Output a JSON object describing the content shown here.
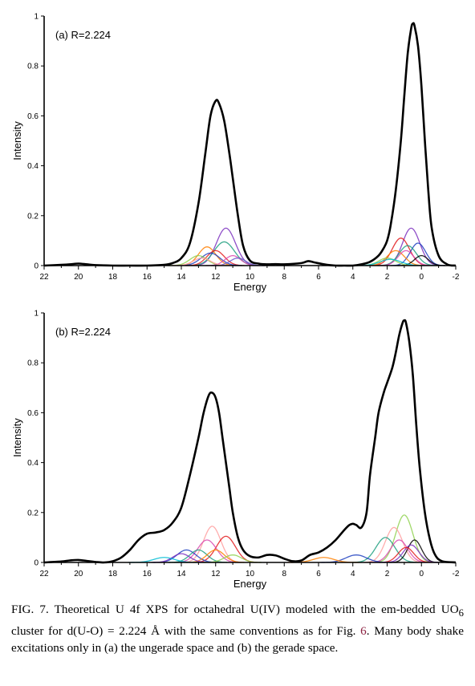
{
  "chart_data": [
    {
      "type": "line",
      "panel_label": "(a) R=2.224",
      "xlabel": "Energy",
      "ylabel": "Intensity",
      "xlim": [
        22,
        -2
      ],
      "ylim": [
        0,
        1
      ],
      "x_ticks": [
        "22",
        "20",
        "18",
        "16",
        "14",
        "12",
        "10",
        "8",
        "6",
        "4",
        "2",
        "0",
        "-2"
      ],
      "y_ticks": [
        "0",
        "0.2",
        "0.4",
        "0.6",
        "0.8",
        "1"
      ],
      "grid": false,
      "legend": "none",
      "series": [
        {
          "role": "total",
          "color": "#000000",
          "x": [
            22,
            21,
            20.5,
            20,
            19.5,
            19,
            18,
            17,
            16,
            15,
            14.5,
            14,
            13.5,
            13,
            12.6,
            12.3,
            12.0,
            11.8,
            11.5,
            11.2,
            11,
            10.7,
            10.4,
            10,
            9.5,
            9,
            8.5,
            8,
            7,
            6.6,
            6.2,
            5.5,
            5,
            4.5,
            4,
            3.5,
            3,
            2.5,
            2.2,
            2,
            1.8,
            1.5,
            1.2,
            1,
            0.8,
            0.6,
            0.5,
            0.4,
            0.2,
            0,
            -0.2,
            -0.4,
            -0.6,
            -1,
            -1.5,
            -2
          ],
          "y": [
            0,
            0.003,
            0.005,
            0.008,
            0.005,
            0.002,
            0,
            0,
            0,
            0.003,
            0.01,
            0.03,
            0.09,
            0.25,
            0.45,
            0.6,
            0.66,
            0.65,
            0.58,
            0.45,
            0.35,
            0.2,
            0.08,
            0.02,
            0.008,
            0.005,
            0.006,
            0.005,
            0.01,
            0.018,
            0.012,
            0.003,
            0,
            0,
            0,
            0.005,
            0.015,
            0.04,
            0.07,
            0.1,
            0.16,
            0.3,
            0.5,
            0.68,
            0.85,
            0.95,
            0.97,
            0.96,
            0.88,
            0.72,
            0.5,
            0.3,
            0.15,
            0.04,
            0.005,
            0
          ]
        },
        {
          "role": "component",
          "color": "#7b2fbe",
          "peak_x": 11.4,
          "peak_y": 0.15,
          "width": 0.55
        },
        {
          "role": "component",
          "color": "#20a080",
          "peak_x": 11.5,
          "peak_y": 0.095,
          "width": 0.6
        },
        {
          "role": "component",
          "color": "#ff7f00",
          "peak_x": 12.5,
          "peak_y": 0.075,
          "width": 0.5
        },
        {
          "role": "component",
          "color": "#e31a1c",
          "peak_x": 12.0,
          "peak_y": 0.06,
          "width": 0.5
        },
        {
          "role": "component",
          "color": "#1f3fbf",
          "peak_x": 12.3,
          "peak_y": 0.05,
          "width": 0.55
        },
        {
          "role": "component",
          "color": "#8fd14f",
          "peak_x": 13.0,
          "peak_y": 0.04,
          "width": 0.5
        },
        {
          "role": "component",
          "color": "#d94ab0",
          "peak_x": 11.0,
          "peak_y": 0.04,
          "width": 0.45
        },
        {
          "role": "component",
          "color": "#6a5acd",
          "peak_x": 10.7,
          "peak_y": 0.03,
          "width": 0.45
        },
        {
          "role": "component",
          "color": "#ff9f9f",
          "peak_x": 12.8,
          "peak_y": 0.03,
          "width": 0.5
        },
        {
          "role": "component",
          "color": "#7b2fbe",
          "peak_x": 0.6,
          "peak_y": 0.15,
          "width": 0.5
        },
        {
          "role": "component",
          "color": "#e31a1c",
          "peak_x": 1.2,
          "peak_y": 0.11,
          "width": 0.5
        },
        {
          "role": "component",
          "color": "#1f3fbf",
          "peak_x": 0.2,
          "peak_y": 0.09,
          "width": 0.45
        },
        {
          "role": "component",
          "color": "#20a080",
          "peak_x": 0.8,
          "peak_y": 0.08,
          "width": 0.5
        },
        {
          "role": "component",
          "color": "#ff7f00",
          "peak_x": 1.5,
          "peak_y": 0.06,
          "width": 0.5
        },
        {
          "role": "component",
          "color": "#d94ab0",
          "peak_x": 0.9,
          "peak_y": 0.06,
          "width": 0.45
        },
        {
          "role": "component",
          "color": "#000000",
          "peak_x": 0.0,
          "peak_y": 0.04,
          "width": 0.4
        },
        {
          "role": "component",
          "color": "#8fd14f",
          "peak_x": 2.0,
          "peak_y": 0.03,
          "width": 0.5
        },
        {
          "role": "component",
          "color": "#00bcd4",
          "peak_x": 1.8,
          "peak_y": 0.025,
          "width": 0.6
        }
      ]
    },
    {
      "type": "line",
      "panel_label": "(b) R=2.224",
      "xlabel": "Energy",
      "ylabel": "Intensity",
      "xlim": [
        22,
        -2
      ],
      "ylim": [
        0,
        1
      ],
      "x_ticks": [
        "22",
        "20",
        "18",
        "16",
        "14",
        "12",
        "10",
        "8",
        "6",
        "4",
        "2",
        "0",
        "-2"
      ],
      "y_ticks": [
        "0",
        "0.2",
        "0.4",
        "0.6",
        "0.8",
        "1"
      ],
      "grid": false,
      "legend": "none",
      "series": [
        {
          "role": "total",
          "color": "#000000",
          "x": [
            22,
            21,
            20.5,
            20,
            19.5,
            19,
            18.5,
            18,
            17.5,
            17,
            16.5,
            16,
            15.5,
            15,
            14.5,
            14,
            13.5,
            13,
            12.7,
            12.4,
            12.2,
            12.0,
            11.8,
            11.6,
            11.4,
            11.2,
            11,
            10.7,
            10.4,
            10,
            9.5,
            9,
            8.5,
            8,
            7.5,
            7,
            6.5,
            6,
            5.5,
            5,
            4.5,
            4.2,
            4,
            3.8,
            3.5,
            3.2,
            3,
            2.7,
            2.5,
            2.2,
            2,
            1.7,
            1.5,
            1.3,
            1.1,
            1.0,
            0.9,
            0.7,
            0.5,
            0.3,
            0.1,
            -0.2,
            -0.5,
            -0.8,
            -1.2,
            -2
          ],
          "y": [
            0,
            0.004,
            0.008,
            0.01,
            0.006,
            0.002,
            0,
            0.005,
            0.02,
            0.05,
            0.09,
            0.115,
            0.12,
            0.13,
            0.16,
            0.22,
            0.35,
            0.5,
            0.6,
            0.67,
            0.68,
            0.66,
            0.6,
            0.5,
            0.4,
            0.3,
            0.2,
            0.1,
            0.05,
            0.025,
            0.02,
            0.03,
            0.028,
            0.015,
            0.005,
            0.008,
            0.03,
            0.04,
            0.06,
            0.09,
            0.13,
            0.15,
            0.155,
            0.15,
            0.14,
            0.2,
            0.35,
            0.5,
            0.6,
            0.68,
            0.72,
            0.78,
            0.84,
            0.91,
            0.96,
            0.97,
            0.96,
            0.88,
            0.75,
            0.55,
            0.38,
            0.2,
            0.09,
            0.03,
            0.005,
            0
          ]
        },
        {
          "role": "component",
          "color": "#ff9f9f",
          "peak_x": 12.2,
          "peak_y": 0.145,
          "width": 0.5
        },
        {
          "role": "component",
          "color": "#e31a1c",
          "peak_x": 11.4,
          "peak_y": 0.105,
          "width": 0.55
        },
        {
          "role": "component",
          "color": "#d94ab0",
          "peak_x": 12.5,
          "peak_y": 0.09,
          "width": 0.55
        },
        {
          "role": "component",
          "color": "#1f3fbf",
          "peak_x": 13.7,
          "peak_y": 0.05,
          "width": 0.55
        },
        {
          "role": "component",
          "color": "#20a080",
          "peak_x": 13.0,
          "peak_y": 0.05,
          "width": 0.5
        },
        {
          "role": "component",
          "color": "#ff7f00",
          "peak_x": 12.0,
          "peak_y": 0.05,
          "width": 0.5
        },
        {
          "role": "component",
          "color": "#7b2fbe",
          "peak_x": 14.0,
          "peak_y": 0.035,
          "width": 0.5
        },
        {
          "role": "component",
          "color": "#00bcd4",
          "peak_x": 15.0,
          "peak_y": 0.02,
          "width": 0.6
        },
        {
          "role": "component",
          "color": "#8fd14f",
          "peak_x": 11.0,
          "peak_y": 0.03,
          "width": 0.5
        },
        {
          "role": "component",
          "color": "#8fd14f",
          "peak_x": 1.0,
          "peak_y": 0.19,
          "width": 0.5
        },
        {
          "role": "component",
          "color": "#ff9f9f",
          "peak_x": 1.6,
          "peak_y": 0.14,
          "width": 0.5
        },
        {
          "role": "component",
          "color": "#20a080",
          "peak_x": 2.1,
          "peak_y": 0.1,
          "width": 0.55
        },
        {
          "role": "component",
          "color": "#000000",
          "peak_x": 0.4,
          "peak_y": 0.09,
          "width": 0.4
        },
        {
          "role": "component",
          "color": "#d94ab0",
          "peak_x": 1.3,
          "peak_y": 0.09,
          "width": 0.5
        },
        {
          "role": "component",
          "color": "#7b2fbe",
          "peak_x": 0.6,
          "peak_y": 0.07,
          "width": 0.45
        },
        {
          "role": "component",
          "color": "#e31a1c",
          "peak_x": 0.9,
          "peak_y": 0.06,
          "width": 0.45
        },
        {
          "role": "component",
          "color": "#1f3fbf",
          "peak_x": 3.8,
          "peak_y": 0.03,
          "width": 0.6
        },
        {
          "role": "component",
          "color": "#ff7f00",
          "peak_x": 5.7,
          "peak_y": 0.02,
          "width": 0.6
        }
      ]
    }
  ],
  "caption": {
    "text_1": "FIG. 7.  Theoretical U 4f XPS for octahedral U(IV) modeled with the em-bedded UO",
    "sub": "6",
    "text_2": " cluster for d(U-O) = 2.224 Å with the same conventions as for Fig. ",
    "fig_ref": "6",
    "text_3": ". Many body shake excitations only in (a) the ungerade space and (b) the gerade space."
  }
}
